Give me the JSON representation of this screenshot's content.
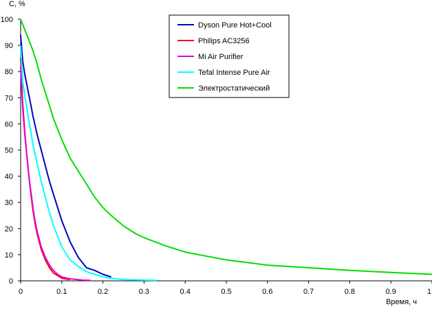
{
  "chart_data": {
    "type": "line",
    "title": "",
    "xlabel": "Время, ч",
    "ylabel": "С, %",
    "xlim": [
      0,
      1
    ],
    "ylim": [
      0,
      100
    ],
    "x_ticks": [
      0,
      0.1,
      0.2,
      0.3,
      0.4,
      0.5,
      0.6,
      0.7,
      0.8,
      0.9,
      1
    ],
    "x_tick_labels": [
      "0",
      "0.1",
      "0.2",
      "0.3",
      "0.4",
      "0.5",
      "0.6",
      "0.7",
      "0.8",
      "0.9",
      "1"
    ],
    "y_ticks": [
      0,
      10,
      20,
      30,
      40,
      50,
      60,
      70,
      80,
      90,
      100
    ],
    "y_tick_labels": [
      "0",
      "10",
      "20",
      "30",
      "40",
      "50",
      "60",
      "70",
      "80",
      "90",
      "100"
    ],
    "grid": false,
    "legend_position": "top-right",
    "series": [
      {
        "name": "Dyson Pure Hot+Cool",
        "color": "#0000c0",
        "points": [
          [
            0,
            94
          ],
          [
            0.005,
            84
          ],
          [
            0.01,
            79
          ],
          [
            0.015,
            75
          ],
          [
            0.02,
            71
          ],
          [
            0.025,
            67
          ],
          [
            0.03,
            63
          ],
          [
            0.04,
            56
          ],
          [
            0.05,
            50
          ],
          [
            0.06,
            44
          ],
          [
            0.07,
            38
          ],
          [
            0.08,
            33
          ],
          [
            0.09,
            28
          ],
          [
            0.1,
            23
          ],
          [
            0.11,
            19
          ],
          [
            0.12,
            15
          ],
          [
            0.13,
            12
          ],
          [
            0.14,
            9
          ],
          [
            0.15,
            7
          ],
          [
            0.16,
            5
          ],
          [
            0.18,
            4
          ],
          [
            0.2,
            2.5
          ],
          [
            0.22,
            1.5
          ]
        ]
      },
      {
        "name": "Philips AC3256",
        "color": "#ff0000",
        "points": [
          [
            0,
            85
          ],
          [
            0.005,
            68
          ],
          [
            0.01,
            57
          ],
          [
            0.015,
            48
          ],
          [
            0.02,
            40
          ],
          [
            0.025,
            33
          ],
          [
            0.03,
            27
          ],
          [
            0.035,
            22
          ],
          [
            0.04,
            18
          ],
          [
            0.05,
            12
          ],
          [
            0.06,
            8
          ],
          [
            0.07,
            5
          ],
          [
            0.08,
            3
          ],
          [
            0.09,
            2
          ],
          [
            0.1,
            1
          ],
          [
            0.12,
            0.5
          ]
        ]
      },
      {
        "name": "Mi Air Purifier",
        "color": "#e000e0",
        "points": [
          [
            0,
            82
          ],
          [
            0.005,
            66
          ],
          [
            0.01,
            56
          ],
          [
            0.015,
            48
          ],
          [
            0.02,
            40
          ],
          [
            0.025,
            34
          ],
          [
            0.03,
            28
          ],
          [
            0.035,
            23
          ],
          [
            0.04,
            19
          ],
          [
            0.05,
            13
          ],
          [
            0.06,
            9
          ],
          [
            0.07,
            6
          ],
          [
            0.08,
            4
          ],
          [
            0.09,
            2.5
          ],
          [
            0.1,
            1.5
          ],
          [
            0.12,
            0.8
          ],
          [
            0.15,
            0.3
          ],
          [
            0.17,
            0.2
          ]
        ]
      },
      {
        "name": "Tefal Intense Pure Air",
        "color": "#00ffff",
        "points": [
          [
            0,
            90
          ],
          [
            0.005,
            76
          ],
          [
            0.01,
            71
          ],
          [
            0.015,
            66
          ],
          [
            0.02,
            61
          ],
          [
            0.025,
            57
          ],
          [
            0.03,
            52
          ],
          [
            0.04,
            45
          ],
          [
            0.05,
            38
          ],
          [
            0.06,
            32
          ],
          [
            0.07,
            26
          ],
          [
            0.08,
            21
          ],
          [
            0.09,
            17
          ],
          [
            0.1,
            13
          ],
          [
            0.12,
            8
          ],
          [
            0.14,
            5.5
          ],
          [
            0.16,
            3.5
          ],
          [
            0.18,
            2.5
          ],
          [
            0.2,
            1.5
          ],
          [
            0.22,
            1
          ],
          [
            0.25,
            0.5
          ],
          [
            0.3,
            0.3
          ],
          [
            0.33,
            0.2
          ]
        ]
      },
      {
        "name": "Электростатический",
        "color": "#00dd00",
        "points": [
          [
            0,
            100
          ],
          [
            0.01,
            96
          ],
          [
            0.02,
            92
          ],
          [
            0.03,
            88
          ],
          [
            0.04,
            83
          ],
          [
            0.05,
            77
          ],
          [
            0.06,
            72
          ],
          [
            0.07,
            67
          ],
          [
            0.08,
            62
          ],
          [
            0.09,
            58
          ],
          [
            0.1,
            54
          ],
          [
            0.12,
            47
          ],
          [
            0.14,
            42
          ],
          [
            0.16,
            37
          ],
          [
            0.18,
            32
          ],
          [
            0.2,
            28
          ],
          [
            0.22,
            25
          ],
          [
            0.25,
            21
          ],
          [
            0.28,
            18
          ],
          [
            0.3,
            16.5
          ],
          [
            0.35,
            13.5
          ],
          [
            0.4,
            11
          ],
          [
            0.45,
            9.5
          ],
          [
            0.5,
            8
          ],
          [
            0.55,
            7
          ],
          [
            0.6,
            6
          ],
          [
            0.7,
            5
          ],
          [
            0.8,
            4
          ],
          [
            0.9,
            3.2
          ],
          [
            1.0,
            2.5
          ]
        ]
      }
    ]
  }
}
